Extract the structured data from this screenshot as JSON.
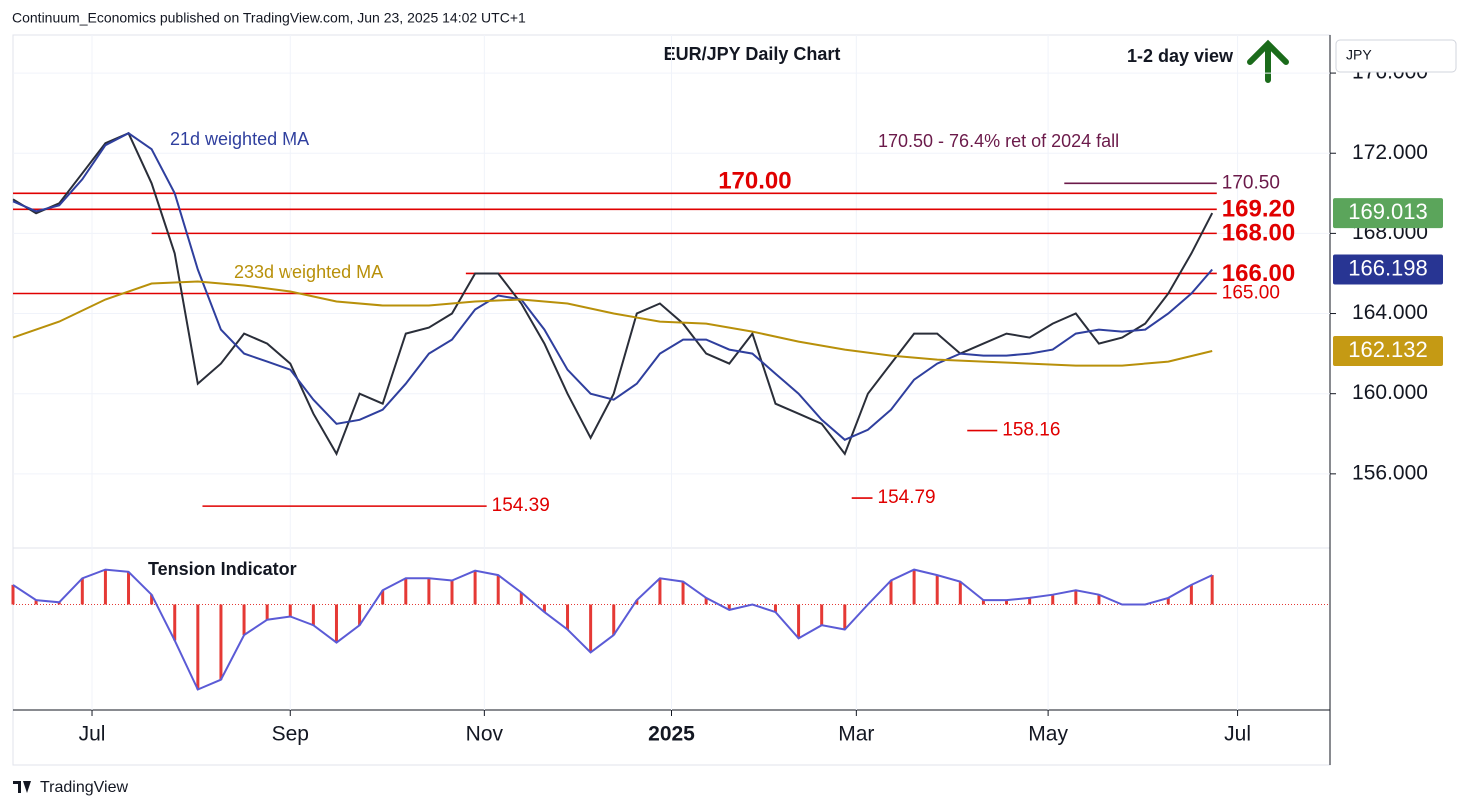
{
  "header": "Continuum_Economics published on TradingView.com, Jun 23, 2025 14:02 UTC+1",
  "currency": "JPY",
  "brand": "TradingView",
  "chart_data": {
    "type": "line",
    "title": "EUR/JPY Daily Chart",
    "subtitle": "1-2 day view",
    "xlim": [
      0,
      57
    ],
    "xticks": [
      {
        "value": 3.42,
        "label": "Jul"
      },
      {
        "value": 12.0,
        "label": "Sep"
      },
      {
        "value": 20.4,
        "label": "Nov"
      },
      {
        "value": 28.5,
        "label": "2025",
        "bold": true
      },
      {
        "value": 36.5,
        "label": "Mar"
      },
      {
        "value": 44.8,
        "label": "May"
      },
      {
        "value": 53.0,
        "label": "Jul"
      }
    ],
    "ylim": [
      152.3,
      177.9
    ],
    "yticks": [
      {
        "value": 156,
        "label": "156.000"
      },
      {
        "value": 160,
        "label": "160.000"
      },
      {
        "value": 164,
        "label": "164.000"
      },
      {
        "value": 168,
        "label": "168.000"
      },
      {
        "value": 172,
        "label": "172.000"
      },
      {
        "value": 176,
        "label": "176.000"
      }
    ],
    "grid": true,
    "series": [
      {
        "name": "EUR/JPY",
        "color": "#2a2e39",
        "tag_color": "#5ba55b",
        "x": [
          0,
          1,
          2,
          3,
          4,
          5,
          6,
          7,
          8,
          9,
          10,
          11,
          12,
          13,
          14,
          15,
          16,
          17,
          18,
          19,
          20,
          21,
          22,
          23,
          24,
          25,
          26,
          27,
          28,
          29,
          30,
          31,
          32,
          33,
          34,
          35,
          36,
          37,
          38,
          39,
          40,
          41,
          42,
          43,
          44,
          45,
          46,
          47,
          48,
          49,
          50,
          51,
          51.9
        ],
        "values": [
          169.7,
          169.0,
          169.5,
          171.0,
          172.5,
          173.0,
          170.5,
          167.0,
          160.5,
          161.5,
          163.0,
          162.5,
          161.5,
          159.0,
          157.0,
          160.0,
          159.5,
          163.0,
          163.3,
          164.0,
          166.0,
          166.0,
          164.5,
          162.5,
          160.0,
          157.8,
          160.0,
          164.0,
          164.5,
          163.5,
          162.0,
          161.5,
          163.0,
          159.5,
          159.0,
          158.5,
          157.0,
          160.0,
          161.5,
          163.0,
          163.0,
          162.0,
          162.5,
          163.0,
          162.8,
          163.5,
          164.0,
          162.5,
          162.8,
          163.5,
          165.0,
          167.0,
          169.013
        ]
      },
      {
        "name": "21d weighted MA",
        "color": "#2f3f9e",
        "tag_color": "#283593",
        "x": [
          0,
          1,
          2,
          3,
          4,
          5,
          6,
          7,
          8,
          9,
          10,
          11,
          12,
          13,
          14,
          15,
          16,
          17,
          18,
          19,
          20,
          21,
          22,
          23,
          24,
          25,
          26,
          27,
          28,
          29,
          30,
          31,
          32,
          33,
          34,
          35,
          36,
          37,
          38,
          39,
          40,
          41,
          42,
          43,
          44,
          45,
          46,
          47,
          48,
          49,
          50,
          51,
          51.9
        ],
        "values": [
          169.6,
          169.1,
          169.4,
          170.7,
          172.4,
          173.0,
          172.2,
          170.0,
          166.2,
          163.2,
          162.0,
          161.6,
          161.2,
          159.7,
          158.5,
          158.7,
          159.2,
          160.5,
          162.0,
          162.7,
          164.2,
          164.9,
          164.7,
          163.2,
          161.2,
          160.0,
          159.7,
          160.5,
          162.0,
          162.7,
          162.7,
          162.2,
          162.0,
          161.0,
          160.0,
          158.7,
          157.7,
          158.2,
          159.2,
          160.7,
          161.5,
          162.0,
          161.9,
          161.9,
          162.0,
          162.2,
          163.0,
          163.2,
          163.1,
          163.2,
          164.0,
          165.0,
          166.198
        ]
      },
      {
        "name": "233d weighted MA",
        "color": "#b8900a",
        "tag_color": "#c59a14",
        "x": [
          0,
          2,
          4,
          6,
          8,
          10,
          12,
          14,
          16,
          18,
          20,
          22,
          24,
          26,
          28,
          30,
          32,
          34,
          36,
          38,
          40,
          42,
          44,
          46,
          48,
          50,
          51.9
        ],
        "values": [
          162.8,
          163.6,
          164.7,
          165.5,
          165.6,
          165.4,
          165.1,
          164.6,
          164.4,
          164.4,
          164.6,
          164.7,
          164.5,
          164.0,
          163.6,
          163.5,
          163.1,
          162.6,
          162.2,
          161.9,
          161.7,
          161.6,
          161.5,
          161.4,
          161.4,
          161.6,
          162.132
        ]
      }
    ],
    "levels": [
      {
        "value": 170,
        "label": "170.00",
        "from": 0,
        "to": 52.1,
        "color": "#e00000"
      },
      {
        "value": 169.2,
        "label": "169.20",
        "from": 0,
        "to": 52.1,
        "color": "#e00000"
      },
      {
        "value": 168,
        "label": "168.00",
        "from": 6.0,
        "to": 52.1,
        "color": "#e00000"
      },
      {
        "value": 166,
        "label": "166.00",
        "from": 19.6,
        "to": 52.1,
        "color": "#e00000"
      },
      {
        "value": 165,
        "label": "165.00",
        "from": 0,
        "to": 52.1,
        "color": "#e00000"
      },
      {
        "value": 170.5,
        "label": "170.50",
        "from": 45.5,
        "to": 52.1,
        "color": "#6b1a4a"
      },
      {
        "value": 158.16,
        "label": "158.16",
        "from": 41.3,
        "to": 42.6,
        "color": "#e00000"
      },
      {
        "value": 154.79,
        "label": "154.79",
        "from": 36.3,
        "to": 37.2,
        "color": "#e00000"
      },
      {
        "value": 154.39,
        "label": "154.39",
        "from": 8.2,
        "to": 20.5,
        "color": "#e00000"
      }
    ],
    "annotations": [
      "21d weighted MA",
      "233d weighted MA",
      "170.50 - 76.4% ret of 2024 fall"
    ],
    "indicator": {
      "name": "Tension Indicator",
      "color": "#5b5bd6",
      "bar_color": "#e53935",
      "ylim": [
        -95,
        50
      ],
      "x": [
        0,
        1,
        2,
        3,
        4,
        5,
        6,
        7,
        8,
        9,
        10,
        11,
        12,
        13,
        14,
        15,
        16,
        17,
        18,
        19,
        20,
        21,
        22,
        23,
        24,
        25,
        26,
        27,
        28,
        29,
        30,
        31,
        32,
        33,
        34,
        35,
        36,
        37,
        38,
        39,
        40,
        41,
        42,
        43,
        44,
        45,
        46,
        47,
        48,
        49,
        50,
        51,
        51.9
      ],
      "values": [
        18,
        4,
        2,
        24,
        32,
        30,
        9,
        -33,
        -78,
        -69,
        -28,
        -14,
        -11,
        -19,
        -35,
        -19,
        13,
        24,
        24,
        22,
        31,
        27,
        11,
        -7,
        -23,
        -44,
        -28,
        4,
        24,
        21,
        6,
        -5,
        0,
        -7,
        -31,
        -19,
        -23,
        0,
        22,
        32,
        27,
        21,
        4,
        4,
        6,
        9,
        13,
        9,
        0,
        0,
        6,
        18,
        27
      ]
    }
  }
}
